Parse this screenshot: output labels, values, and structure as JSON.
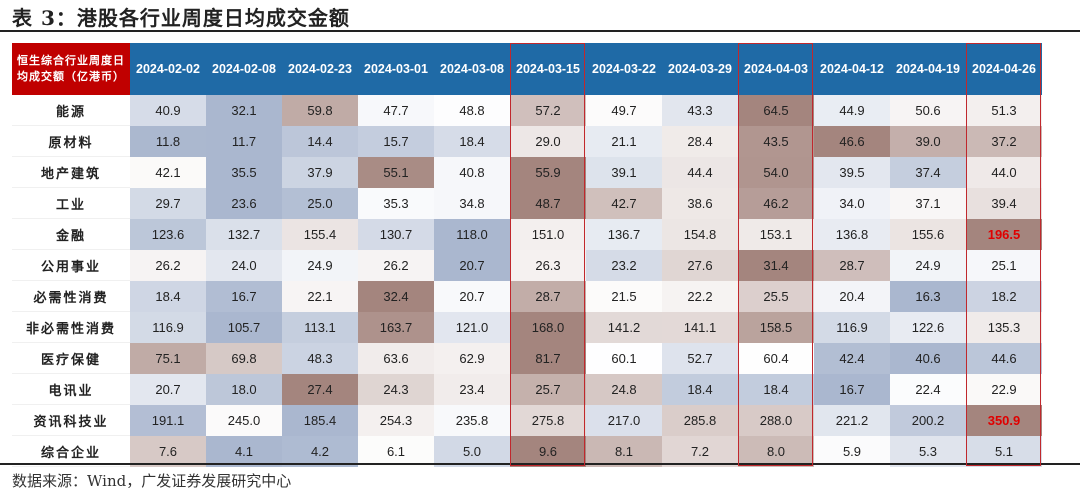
{
  "title": "表 3：港股各行业周度日均成交金额",
  "source": "数据来源：Wind，广发证券发展研究中心",
  "chart_data": {
    "type": "heatmap",
    "corner_label": "恒生综合行业周度日均成交额（亿港币）",
    "columns": [
      "2024-02-02",
      "2024-02-08",
      "2024-02-23",
      "2024-03-01",
      "2024-03-08",
      "2024-03-15",
      "2024-03-22",
      "2024-03-29",
      "2024-04-03",
      "2024-04-12",
      "2024-04-19",
      "2024-04-26"
    ],
    "highlighted_columns": [
      "2024-03-15",
      "2024-04-03",
      "2024-04-26"
    ],
    "rows": [
      {
        "name": "能源",
        "values": [
          40.9,
          32.1,
          59.8,
          47.7,
          48.8,
          57.2,
          49.7,
          43.3,
          64.5,
          44.9,
          50.6,
          51.3
        ]
      },
      {
        "name": "原材料",
        "values": [
          11.8,
          11.7,
          14.4,
          15.7,
          18.4,
          29.0,
          21.1,
          28.4,
          43.5,
          46.6,
          39.0,
          37.2
        ]
      },
      {
        "name": "地产建筑",
        "values": [
          42.1,
          35.5,
          37.9,
          55.1,
          40.8,
          55.9,
          39.1,
          44.4,
          54.0,
          39.5,
          37.4,
          44.0
        ]
      },
      {
        "name": "工业",
        "values": [
          29.7,
          23.6,
          25.0,
          35.3,
          34.8,
          48.7,
          42.7,
          38.6,
          46.2,
          34.0,
          37.1,
          39.4
        ]
      },
      {
        "name": "金融",
        "values": [
          123.6,
          132.7,
          155.4,
          130.7,
          118.0,
          151.0,
          136.7,
          154.8,
          153.1,
          136.8,
          155.6,
          196.5
        ],
        "highlight": [
          11
        ]
      },
      {
        "name": "公用事业",
        "values": [
          26.2,
          24.0,
          24.9,
          26.2,
          20.7,
          26.3,
          23.2,
          27.6,
          31.4,
          28.7,
          24.9,
          25.1
        ]
      },
      {
        "name": "必需性消费",
        "values": [
          18.4,
          16.7,
          22.1,
          32.4,
          20.7,
          28.7,
          21.5,
          22.2,
          25.5,
          20.4,
          16.3,
          18.2
        ]
      },
      {
        "name": "非必需性消费",
        "values": [
          116.9,
          105.7,
          113.1,
          163.7,
          121.0,
          168.0,
          141.2,
          141.1,
          158.5,
          116.9,
          122.6,
          135.3
        ]
      },
      {
        "name": "医疗保健",
        "values": [
          75.1,
          69.8,
          48.3,
          63.6,
          62.9,
          81.7,
          60.1,
          52.7,
          60.4,
          42.4,
          40.6,
          44.6
        ]
      },
      {
        "name": "电讯业",
        "values": [
          20.7,
          18.0,
          27.4,
          24.3,
          23.4,
          25.7,
          24.8,
          18.4,
          18.4,
          16.7,
          22.4,
          22.9
        ]
      },
      {
        "name": "资讯科技业",
        "values": [
          191.1,
          245.0,
          185.4,
          254.3,
          235.8,
          275.8,
          217.0,
          285.8,
          288.0,
          221.2,
          200.2,
          350.9
        ],
        "highlight": [
          11
        ]
      },
      {
        "name": "综合企业",
        "values": [
          7.6,
          4.1,
          4.2,
          6.1,
          5.0,
          9.6,
          8.1,
          7.2,
          8.0,
          5.9,
          5.3,
          5.1
        ]
      }
    ],
    "colors": {
      "low": "#aab7cf",
      "mid": "#ffffff",
      "high": "#a4857e",
      "header": "#1f6aa6",
      "corner": "#c00000",
      "box": "#c0282d",
      "highlight_text": "#e00000"
    }
  }
}
